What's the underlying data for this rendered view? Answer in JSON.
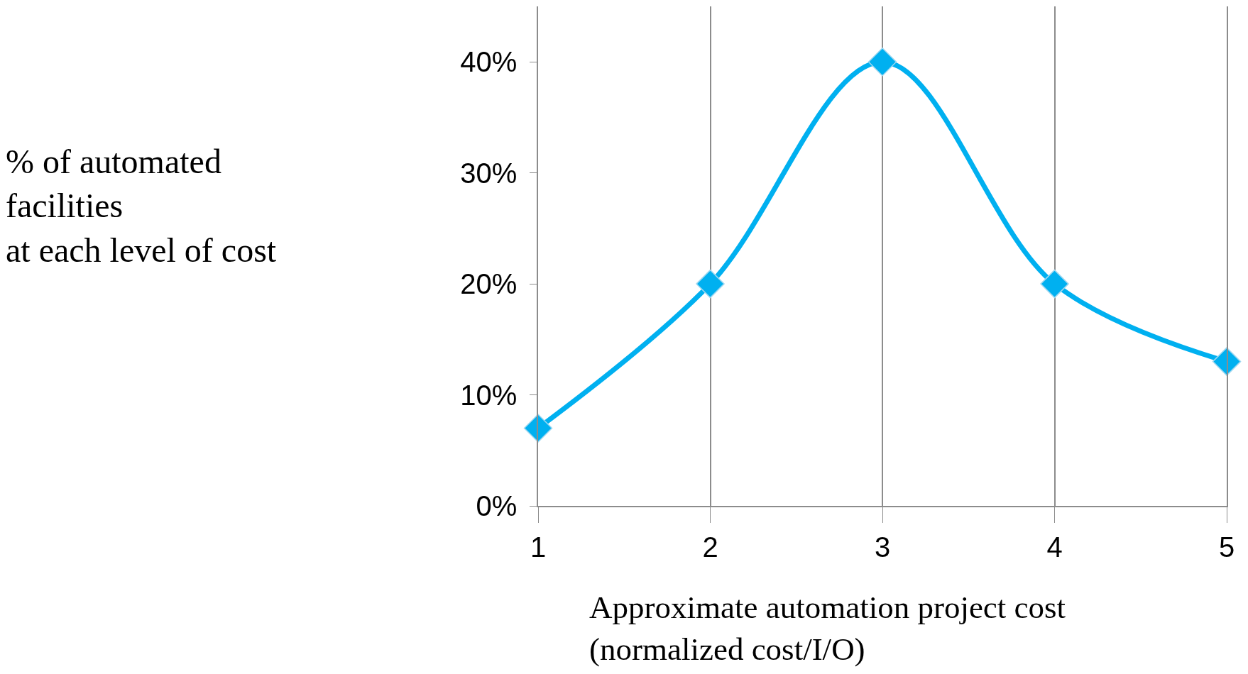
{
  "chart_data": {
    "type": "line",
    "xlabel": "Approximate automation project cost\n(normalized cost/I/O)",
    "annotations": [
      "% of automated\nfacilities\nat each level of cost"
    ],
    "x": [
      1,
      2,
      3,
      4,
      5
    ],
    "series": [
      {
        "color": "#00b0f0",
        "values": [
          7,
          20,
          40,
          20,
          13
        ]
      }
    ],
    "xlim": [
      1,
      5
    ],
    "xticks": [
      1,
      2,
      3,
      4,
      5
    ],
    "ylim": [
      0,
      45
    ],
    "yticks": [
      {
        "value": 0,
        "label": "0%"
      },
      {
        "value": 10,
        "label": "10%"
      },
      {
        "value": 20,
        "label": "20%"
      },
      {
        "value": 30,
        "label": "30%"
      },
      {
        "value": 40,
        "label": "40%"
      }
    ],
    "grid": "x",
    "marker": "diamond",
    "line_style": "solid"
  }
}
